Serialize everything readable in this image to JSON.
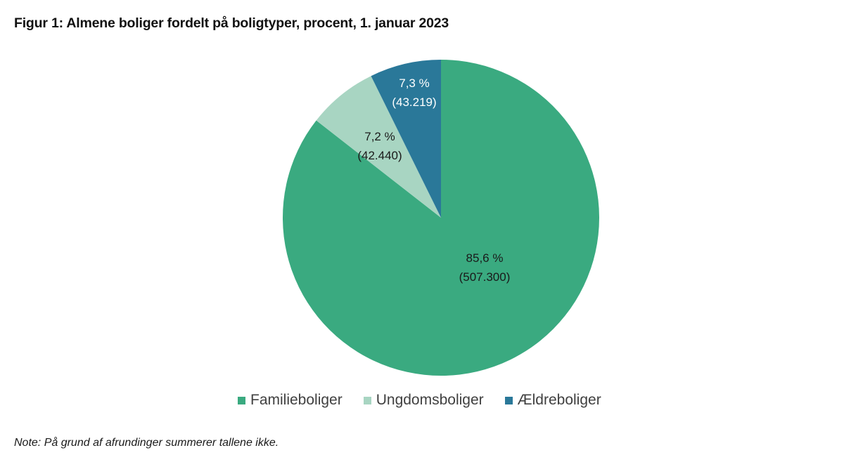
{
  "title": "Figur 1: Almene boliger fordelt på boligtyper, procent, 1. januar 2023",
  "note": "Note: På grund af afrundinger summerer tallene ikke.",
  "colors": {
    "familieboliger": "#3aaa80",
    "ungdomsboliger": "#a8d5c2",
    "aeldreboliger": "#2a7899"
  },
  "legend": [
    {
      "label": "Familieboliger",
      "color": "#3aaa80"
    },
    {
      "label": "Ungdomsboliger",
      "color": "#a8d5c2"
    },
    {
      "label": "Ældreboliger",
      "color": "#2a7899"
    }
  ],
  "slices": [
    {
      "name": "Familieboliger",
      "pct_label": "85,6 %",
      "count_label": "(507.300)"
    },
    {
      "name": "Ungdomsboliger",
      "pct_label": "7,2 %",
      "count_label": "(42.440)"
    },
    {
      "name": "Ældreboliger",
      "pct_label": "7,3 %",
      "count_label": "(43.219)"
    }
  ],
  "chart_data": {
    "type": "pie",
    "title": "Figur 1: Almene boliger fordelt på boligtyper, procent, 1. januar 2023",
    "categories": [
      "Familieboliger",
      "Ungdomsboliger",
      "Ældreboliger"
    ],
    "values": [
      85.6,
      7.2,
      7.3
    ],
    "counts": [
      507300,
      42440,
      43219
    ],
    "labels": [
      "85,6 % (507.300)",
      "7,2 % (42.440)",
      "7,3 % (43.219)"
    ],
    "colors": [
      "#3aaa80",
      "#a8d5c2",
      "#2a7899"
    ],
    "start_angle": "12 o'clock, clockwise",
    "legend_position": "bottom",
    "annotations": [
      "Note: På grund af afrundinger summerer tallene ikke."
    ]
  }
}
